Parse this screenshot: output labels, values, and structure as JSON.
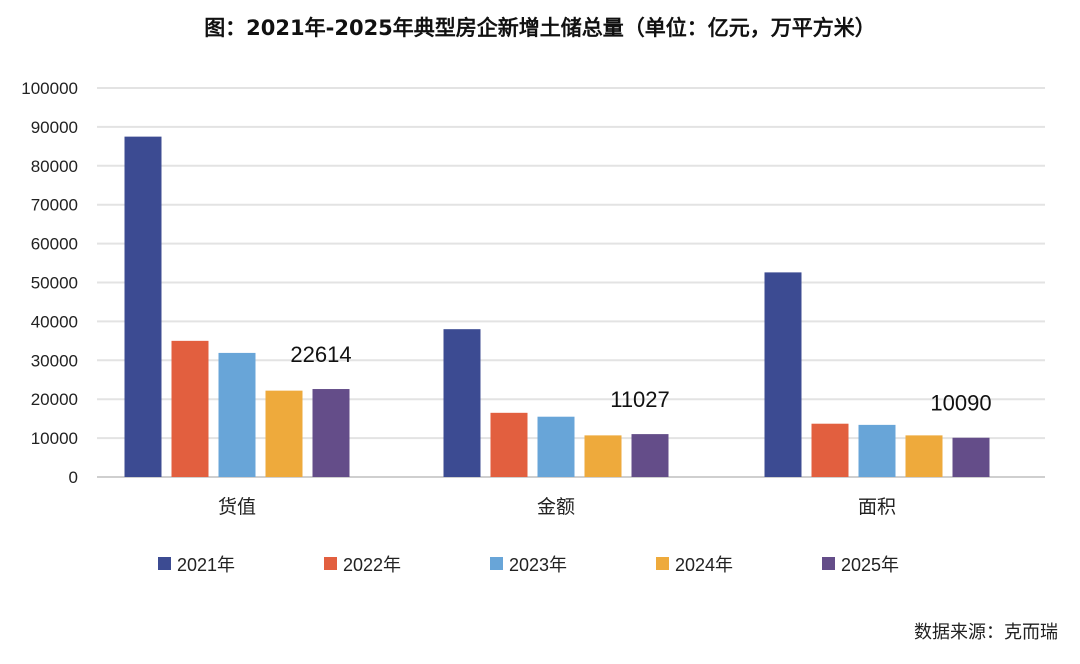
{
  "chart_data": {
    "type": "bar",
    "title": "图：2021年-2025年典型房企新增土储总量（单位：亿元，万平方米）",
    "categories": [
      "货值",
      "金额",
      "面积"
    ],
    "series": [
      {
        "name": "2021年",
        "color": "#3c4b92",
        "values": [
          87500,
          38000,
          52600
        ]
      },
      {
        "name": "2022年",
        "color": "#e25f3f",
        "values": [
          35000,
          16500,
          13700
        ]
      },
      {
        "name": "2023年",
        "color": "#68a5d8",
        "values": [
          31900,
          15500,
          13400
        ]
      },
      {
        "name": "2024年",
        "color": "#eeaa3c",
        "values": [
          22200,
          10700,
          10700
        ]
      },
      {
        "name": "2025年",
        "color": "#644d89",
        "values": [
          22614,
          11027,
          10090
        ]
      }
    ],
    "data_labels": [
      {
        "series": "2025年",
        "labels": [
          "22614",
          "11027",
          "10090"
        ]
      }
    ],
    "ylim": [
      0,
      100000
    ],
    "yticks": [
      "0",
      "10000",
      "20000",
      "30000",
      "40000",
      "50000",
      "60000",
      "70000",
      "80000",
      "90000",
      "100000"
    ],
    "grid": true,
    "legend_position": "bottom",
    "xlabel": "",
    "ylabel": ""
  },
  "source": "数据来源：克而瑞"
}
